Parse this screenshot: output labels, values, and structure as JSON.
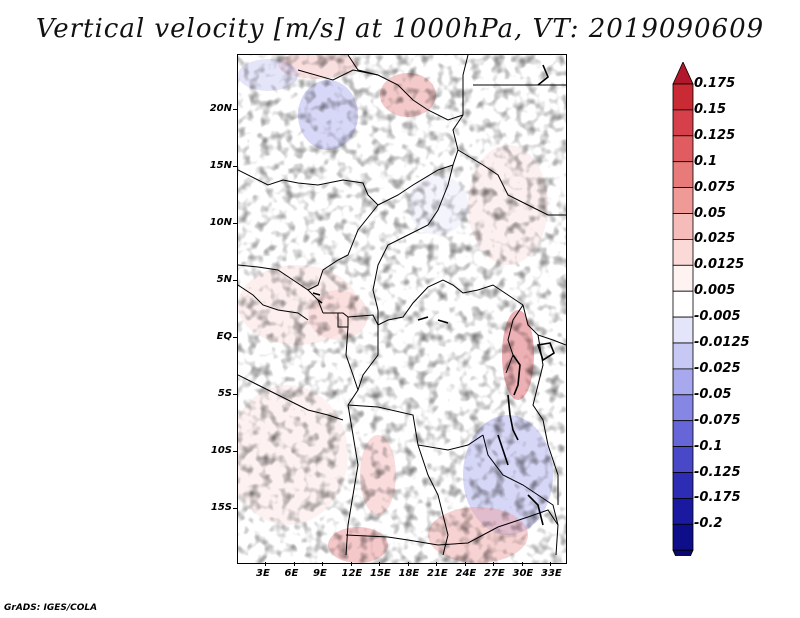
{
  "title": "Vertical velocity [m/s] at 1000hPa, VT: 2019090609",
  "credit": "GrADS: IGES/COLA",
  "map": {
    "lon_labels": [
      "3E",
      "6E",
      "9E",
      "12E",
      "15E",
      "18E",
      "21E",
      "24E",
      "27E",
      "30E",
      "33E"
    ],
    "lat_labels": [
      "20N",
      "15N",
      "10N",
      "5N",
      "EQ",
      "5S",
      "10S",
      "15S"
    ]
  },
  "colorbar": {
    "labels": [
      "0.175",
      "0.15",
      "0.125",
      "0.1",
      "0.075",
      "0.05",
      "0.025",
      "0.0125",
      "0.005",
      "-0.005",
      "-0.0125",
      "-0.025",
      "-0.05",
      "-0.075",
      "-0.1",
      "-0.125",
      "-0.175",
      "-0.2"
    ],
    "colors": [
      "#b2182b",
      "#c92a33",
      "#d6404a",
      "#e05c60",
      "#e87a7a",
      "#f09a98",
      "#f6bcba",
      "#fbd9d7",
      "#fff3f2",
      "#ffffff",
      "#e4e4fb",
      "#c8c8f5",
      "#a8a8ee",
      "#8686e4",
      "#6666d8",
      "#4848c8",
      "#2c2cb4",
      "#1a1aa0",
      "#0e0e8a",
      "#080870"
    ]
  }
}
